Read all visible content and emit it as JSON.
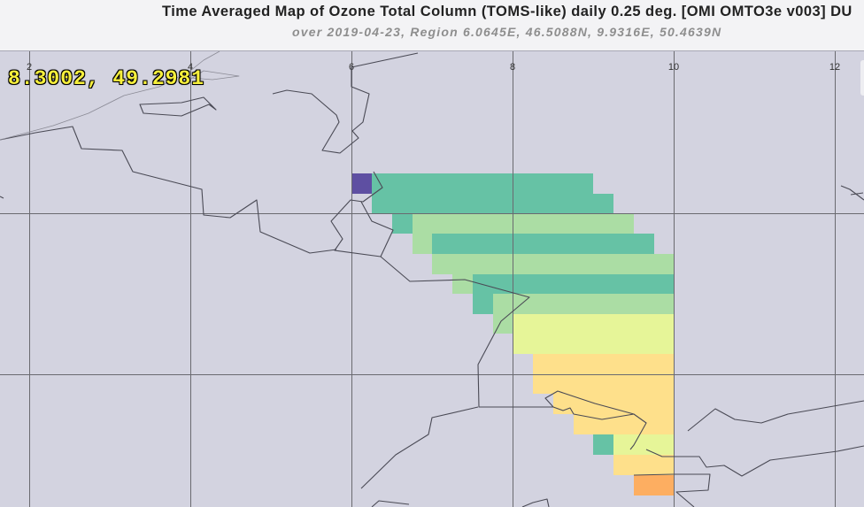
{
  "title": "Time Averaged Map of Ozone Total Column (TOMS-like) daily 0.25 deg. [OMI OMTO3e v003] DU",
  "subtitle": "over 2019-04-23, Region 6.0645E, 46.5088N, 9.9316E, 50.4639N",
  "cursor_readout": "8.3002, 49.2981",
  "longitude_ticks": [
    "2",
    "4",
    "6",
    "8",
    "10",
    "12"
  ],
  "colors": {
    "background": "#d3d3e0",
    "teal": "#66c2a5",
    "light_green": "#abdda4",
    "yellow_green": "#e6f598",
    "light_orange": "#fee08b",
    "orange": "#fdae61",
    "purple": "#5e4fa2",
    "borders": "#4a4a55"
  }
}
